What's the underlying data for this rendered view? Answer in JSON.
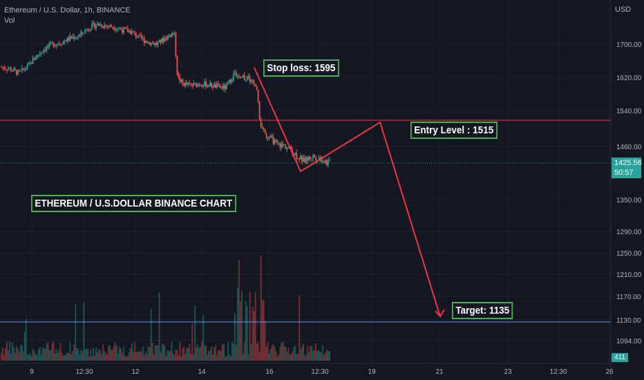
{
  "legend": {
    "symbol_line": "Ethereum / U.S. Dollar, 1h, BINANCE",
    "volume_label": "Vol"
  },
  "price_axis": {
    "currency": "USD",
    "current_price": "1425.56",
    "countdown": "50:57",
    "volume_value": "411"
  },
  "annotations": {
    "stop_loss": "Stop loss: 1595",
    "entry": "Entry Level : 1515",
    "target": "Target: 1135",
    "title": "ETHEREUM / U.S.DOLLAR BINANCE CHART"
  },
  "colors": {
    "background": "#131722",
    "up": "#26a69a",
    "down": "#ef5350",
    "entry_line": "#f23645",
    "target_line": "#5b9cf6",
    "projection": "#f23645",
    "annotation_border": "#4caf50"
  },
  "chart_data": {
    "type": "candlestick",
    "symbol": "Ethereum / U.S. Dollar",
    "interval": "1h",
    "exchange": "BINANCE",
    "y_ticks": [
      1700,
      1620,
      1540,
      1460,
      1350,
      1290,
      1250,
      1210,
      1170,
      1130,
      1094
    ],
    "y_tick_labels": [
      "1700.00",
      "1620.00",
      "1540.00",
      "1460.00",
      "1350.00",
      "1290.00",
      "1250.00",
      "1210.00",
      "1170.00",
      "1130.00",
      "1094.00"
    ],
    "x_tick_labels": [
      "9",
      "12:30",
      "12",
      "14",
      "16",
      "12:30",
      "19",
      "21",
      "23",
      "12:30",
      "26"
    ],
    "price_path": [
      [
        0,
        1645
      ],
      [
        0.05,
        1640
      ],
      [
        0.1,
        1630
      ],
      [
        0.15,
        1645
      ],
      [
        0.2,
        1670
      ],
      [
        0.25,
        1690
      ],
      [
        0.3,
        1700
      ],
      [
        0.35,
        1705
      ],
      [
        0.4,
        1715
      ],
      [
        0.45,
        1720
      ],
      [
        0.5,
        1738
      ],
      [
        0.55,
        1748
      ],
      [
        0.6,
        1745
      ],
      [
        0.65,
        1742
      ],
      [
        0.7,
        1735
      ],
      [
        0.75,
        1730
      ],
      [
        0.8,
        1715
      ],
      [
        0.85,
        1705
      ],
      [
        0.9,
        1700
      ],
      [
        0.95,
        1715
      ],
      [
        1.0,
        1730
      ],
      [
        1.02,
        1620
      ],
      [
        1.05,
        1605
      ],
      [
        1.1,
        1600
      ],
      [
        1.15,
        1605
      ],
      [
        1.2,
        1602
      ],
      [
        1.25,
        1598
      ],
      [
        1.3,
        1595
      ],
      [
        1.35,
        1630
      ],
      [
        1.4,
        1622
      ],
      [
        1.45,
        1610
      ],
      [
        1.48,
        1595
      ],
      [
        1.5,
        1500
      ],
      [
        1.55,
        1480
      ],
      [
        1.6,
        1465
      ],
      [
        1.65,
        1460
      ],
      [
        1.7,
        1445
      ],
      [
        1.75,
        1430
      ],
      [
        1.8,
        1440
      ],
      [
        1.85,
        1435
      ],
      [
        1.88,
        1428
      ],
      [
        1.9,
        1426
      ]
    ],
    "horizontal_lines": [
      {
        "label": "Entry Level",
        "value": 1515
      },
      {
        "label": "Target",
        "value": 1135
      }
    ],
    "current_price": 1425.56,
    "projection_path": [
      {
        "t": 1.48,
        "value": 1640
      },
      {
        "t": 1.78,
        "value": 1415
      },
      {
        "t": 2.22,
        "value": 1515
      },
      {
        "t": 2.56,
        "value": 1135
      }
    ]
  }
}
